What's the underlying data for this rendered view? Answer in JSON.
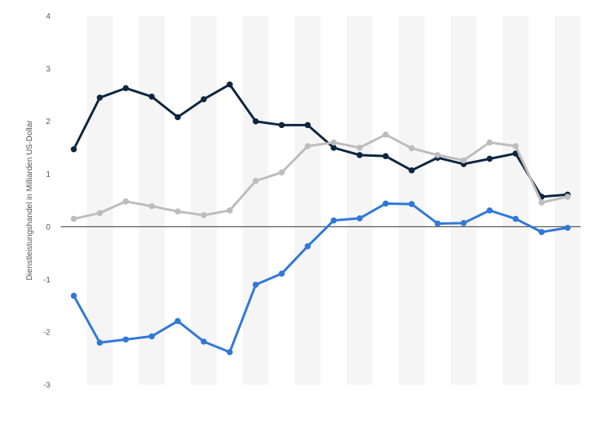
{
  "chart_data": {
    "type": "line",
    "title": "",
    "xlabel": "",
    "ylabel": "Dienstleistungshandel in Milliarden US-Dollar",
    "ylim": [
      -3,
      4
    ],
    "yticks": [
      "4",
      "3",
      "2",
      "1",
      "0",
      "-1",
      "-2",
      "-3"
    ],
    "grid": "alternating vertical column bands",
    "legend": "none",
    "x": [
      1,
      2,
      3,
      4,
      5,
      6,
      7,
      8,
      9,
      10,
      11,
      12,
      13,
      14,
      15,
      16,
      17,
      18,
      19,
      20
    ],
    "series": [
      {
        "color": "#0d2640",
        "values": [
          1.47,
          2.45,
          2.63,
          2.47,
          2.08,
          2.42,
          2.7,
          2.0,
          1.93,
          1.93,
          1.5,
          1.36,
          1.34,
          1.07,
          1.31,
          1.19,
          1.29,
          1.39,
          0.57,
          0.61
        ]
      },
      {
        "color": "#bdbdbd",
        "values": [
          0.15,
          0.26,
          0.48,
          0.39,
          0.29,
          0.22,
          0.31,
          0.87,
          1.03,
          1.53,
          1.6,
          1.5,
          1.75,
          1.49,
          1.36,
          1.26,
          1.6,
          1.53,
          0.46,
          0.57
        ]
      },
      {
        "color": "#2f78d8",
        "values": [
          -1.31,
          -2.2,
          -2.14,
          -2.08,
          -1.79,
          -2.18,
          -2.38,
          -1.1,
          -0.89,
          -0.37,
          0.12,
          0.16,
          0.44,
          0.43,
          0.06,
          0.07,
          0.31,
          0.15,
          -0.1,
          -0.02
        ]
      }
    ]
  }
}
